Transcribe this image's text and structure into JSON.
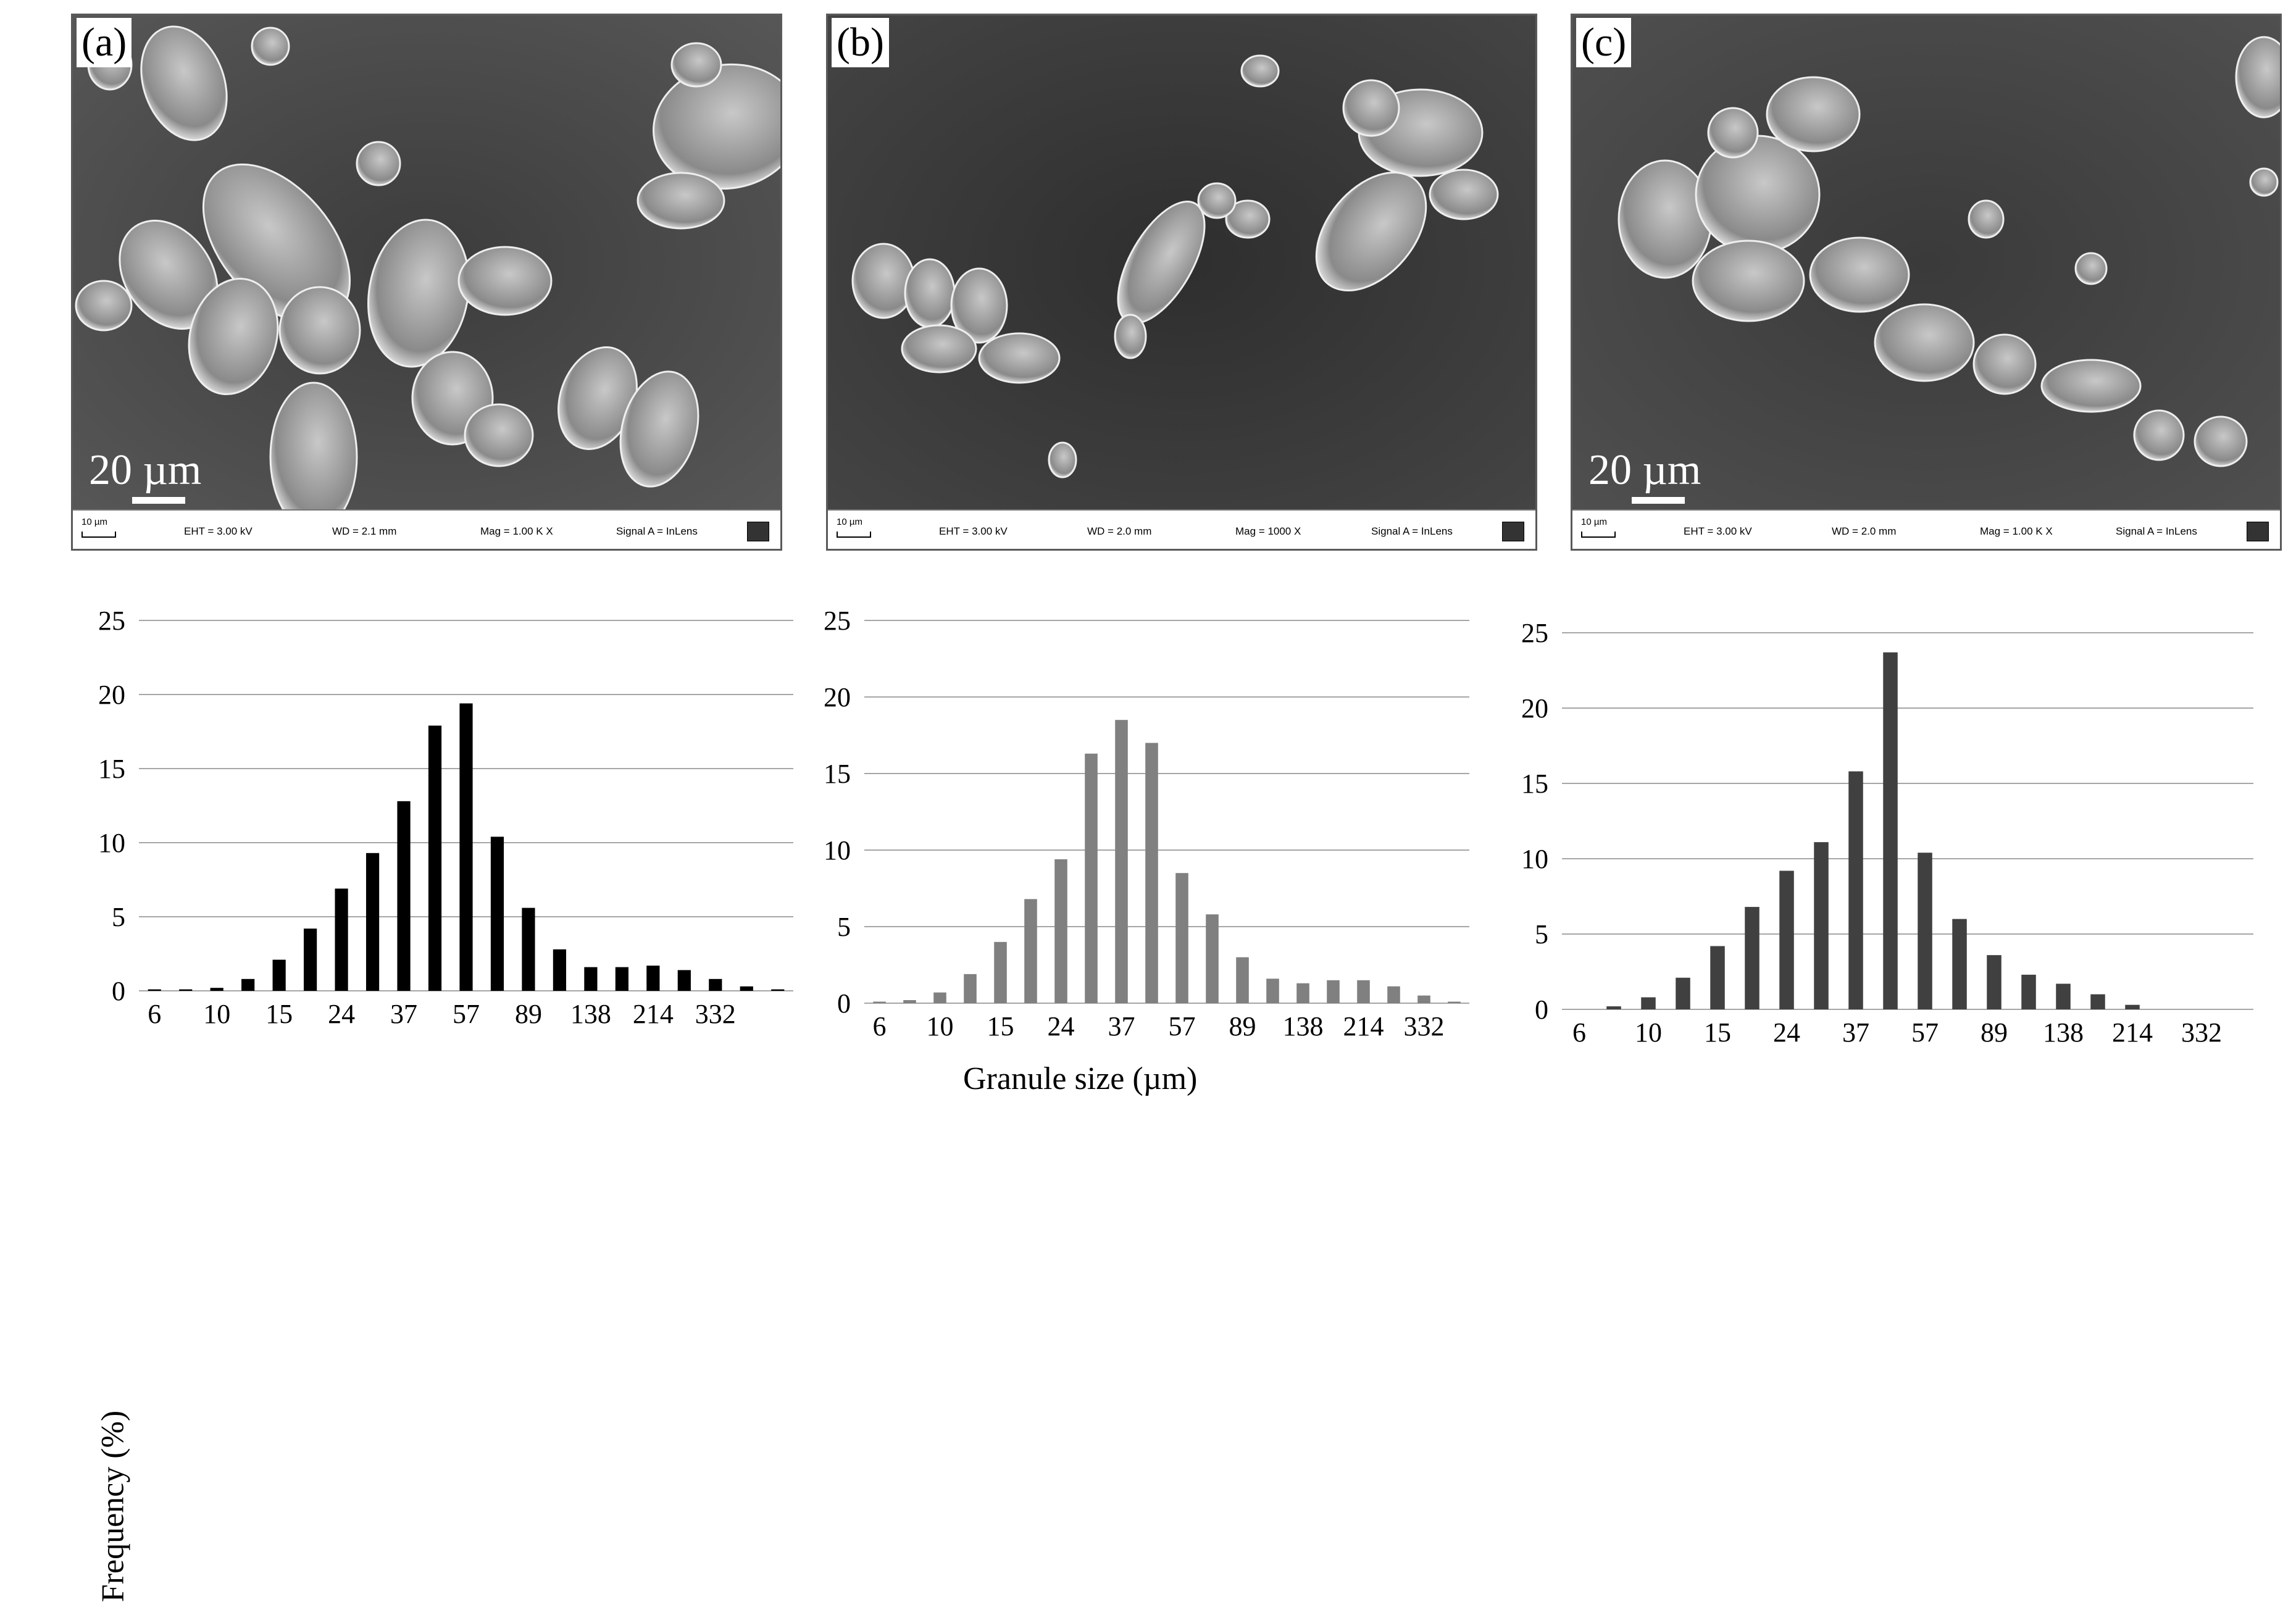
{
  "panels": [
    {
      "letter": "(a)",
      "scale_label": "20 µm",
      "info": {
        "scale": "10 µm",
        "eht": "EHT =  3.00 kV",
        "wd": "WD =  2.1 mm",
        "mag": "Mag =    1.00 K X",
        "signal": "Signal A = InLens"
      }
    },
    {
      "letter": "(b)",
      "scale_label": "",
      "info": {
        "scale": "10 µm",
        "eht": "EHT =  3.00 kV",
        "wd": "WD =  2.0 mm",
        "mag": "Mag =    1000 X",
        "signal": "Signal A = InLens"
      }
    },
    {
      "letter": "(c)",
      "scale_label": "20 µm",
      "info": {
        "scale": "10 µm",
        "eht": "EHT =  3.00 kV",
        "wd": "WD =  2.0 mm",
        "mag": "Mag =    1.00 K X",
        "signal": "Signal A = InLens"
      }
    }
  ],
  "colors": {
    "a": "#000000",
    "b": "#808080",
    "c": "#404040",
    "grid": "#a6a6a6",
    "sem_bg": "#4a4a4a"
  },
  "chart_data": [
    {
      "type": "bar",
      "panel": "a",
      "ylabel": "Frequency (%)",
      "xlabel": "Granule size (µm)",
      "ylim": [
        0,
        25
      ],
      "yticks": [
        0,
        5,
        10,
        15,
        20,
        25
      ],
      "grid": true,
      "x_tick_labels": [
        "6",
        "10",
        "15",
        "24",
        "37",
        "57",
        "89",
        "138",
        "214",
        "332"
      ],
      "values": [
        0.1,
        0.1,
        0.2,
        0.8,
        2.1,
        4.2,
        6.9,
        9.3,
        12.8,
        17.9,
        19.4,
        10.4,
        5.6,
        2.8,
        1.6,
        1.6,
        1.7,
        1.4,
        0.8,
        0.3,
        0.1
      ]
    },
    {
      "type": "bar",
      "panel": "b",
      "ylabel": "Frequency (%)",
      "xlabel": "Granule size (µm)",
      "ylim": [
        0,
        25
      ],
      "yticks": [
        0,
        5,
        10,
        15,
        20,
        25
      ],
      "grid": true,
      "x_tick_labels": [
        "6",
        "10",
        "15",
        "24",
        "37",
        "57",
        "89",
        "138",
        "214",
        "332"
      ],
      "values": [
        0.1,
        0.2,
        0.7,
        1.9,
        4.0,
        6.8,
        9.4,
        16.3,
        18.5,
        17.0,
        8.5,
        5.8,
        3.0,
        1.6,
        1.3,
        1.5,
        1.5,
        1.1,
        0.5,
        0.1
      ]
    },
    {
      "type": "bar",
      "panel": "c",
      "ylabel": "Frequency (%)",
      "xlabel": "Granule size (µm)",
      "ylim": [
        0,
        25
      ],
      "yticks": [
        0,
        5,
        10,
        15,
        20,
        25
      ],
      "grid": true,
      "x_tick_labels": [
        "6",
        "10",
        "15",
        "24",
        "37",
        "57",
        "89",
        "138",
        "214",
        "332"
      ],
      "values": [
        0.0,
        0.2,
        0.8,
        2.1,
        4.2,
        6.8,
        9.2,
        11.1,
        15.8,
        23.7,
        10.4,
        6.0,
        3.6,
        2.3,
        1.7,
        1.0,
        0.3,
        0.0,
        0.0,
        0.0
      ]
    }
  ]
}
